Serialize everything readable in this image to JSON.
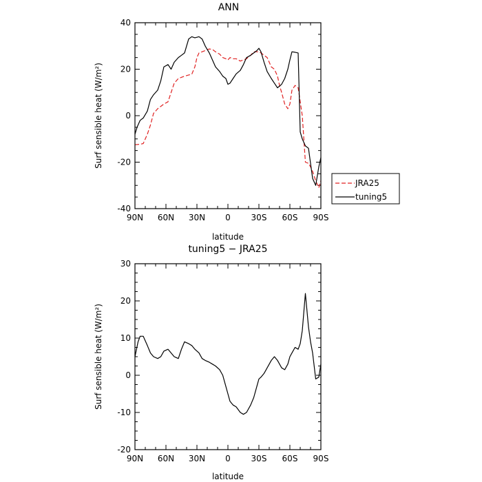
{
  "chart_data": [
    {
      "type": "line",
      "title": "ANN",
      "xlabel": "latitude",
      "ylabel": "Surf sensible heat (W/m²)",
      "ylim": [
        -40,
        40
      ],
      "yticks": [
        -40,
        -20,
        0,
        20,
        40
      ],
      "xticks": [
        {
          "lat": 90,
          "label": "90N"
        },
        {
          "lat": 60,
          "label": "60N"
        },
        {
          "lat": 30,
          "label": "30N"
        },
        {
          "lat": 0,
          "label": "0"
        },
        {
          "lat": -30,
          "label": "30S"
        },
        {
          "lat": -60,
          "label": "60S"
        },
        {
          "lat": -90,
          "label": "90S"
        }
      ],
      "legend": {
        "placement": "right"
      },
      "series": [
        {
          "name": "JRA25",
          "color": "#e02020",
          "dash": "dashed",
          "x": [
            90,
            85,
            82,
            78,
            75,
            72,
            68,
            65,
            62,
            58,
            55,
            52,
            48,
            45,
            42,
            38,
            35,
            32,
            30,
            28,
            25,
            22,
            18,
            15,
            12,
            8,
            5,
            2,
            0,
            -2,
            -5,
            -8,
            -12,
            -15,
            -18,
            -22,
            -25,
            -28,
            -30,
            -32,
            -35,
            -38,
            -42,
            -45,
            -48,
            -50,
            -52,
            -55,
            -58,
            -60,
            -62,
            -65,
            -68,
            -72,
            -75,
            -78,
            -80,
            -82,
            -85,
            -88,
            -90
          ],
          "y": [
            -12.5,
            -12.3,
            -12,
            -8,
            -4,
            1,
            3,
            4,
            5,
            6,
            10,
            14,
            16,
            16.5,
            17,
            17.5,
            17.8,
            21,
            25,
            27,
            27.5,
            28,
            28.7,
            28.5,
            27.5,
            26.5,
            25,
            24.5,
            24,
            25,
            24.5,
            24.5,
            23.5,
            24,
            24.5,
            26,
            27.5,
            27.5,
            27.5,
            27,
            26,
            25,
            21,
            20,
            17,
            13,
            10,
            5,
            3,
            5,
            11,
            13,
            12,
            0,
            -20,
            -20.5,
            -22,
            -24,
            -28,
            -31,
            -28
          ]
        },
        {
          "name": "tuning5",
          "color": "#000000",
          "dash": "solid",
          "x": [
            90,
            88,
            85,
            82,
            78,
            75,
            72,
            68,
            65,
            62,
            58,
            55,
            52,
            48,
            45,
            42,
            38,
            35,
            32,
            28,
            25,
            22,
            18,
            15,
            12,
            8,
            5,
            2,
            0,
            -2,
            -5,
            -8,
            -12,
            -15,
            -18,
            -22,
            -25,
            -28,
            -30,
            -32,
            -35,
            -38,
            -42,
            -45,
            -48,
            -52,
            -55,
            -58,
            -60,
            -62,
            -65,
            -68,
            -70,
            -72,
            -75,
            -78,
            -82,
            -85,
            -88,
            -90
          ],
          "y": [
            -8,
            -5,
            -2,
            -1,
            2,
            7,
            9,
            11,
            15,
            21,
            22,
            20,
            23,
            25,
            26,
            27,
            33,
            34,
            33.5,
            34,
            33,
            30,
            27,
            24,
            21,
            19,
            17,
            16,
            13.5,
            14,
            16,
            18,
            19.5,
            22,
            25,
            26,
            27,
            28,
            29,
            27.5,
            23,
            19,
            16,
            14,
            12,
            13.5,
            16,
            20,
            24,
            27.5,
            27.3,
            27,
            -7,
            -10,
            -13,
            -14,
            -27,
            -30,
            -22,
            -18
          ]
        }
      ]
    },
    {
      "type": "line",
      "title": "tuning5 − JRA25",
      "xlabel": "latitude",
      "ylabel": "Surf sensible heat (W/m²)",
      "ylim": [
        -20,
        30
      ],
      "yticks": [
        -20,
        -10,
        0,
        10,
        20,
        30
      ],
      "xticks": [
        {
          "lat": 90,
          "label": "90N"
        },
        {
          "lat": 60,
          "label": "60N"
        },
        {
          "lat": 30,
          "label": "30N"
        },
        {
          "lat": 0,
          "label": "0"
        },
        {
          "lat": -30,
          "label": "30S"
        },
        {
          "lat": -60,
          "label": "60S"
        },
        {
          "lat": -90,
          "label": "90S"
        }
      ],
      "series": [
        {
          "color": "#000000",
          "dash": "solid",
          "x": [
            90,
            87,
            85,
            82,
            78,
            75,
            72,
            68,
            65,
            62,
            58,
            55,
            52,
            48,
            45,
            42,
            38,
            35,
            32,
            28,
            25,
            22,
            18,
            15,
            12,
            8,
            5,
            2,
            0,
            -2,
            -5,
            -8,
            -12,
            -15,
            -18,
            -22,
            -25,
            -28,
            -30,
            -32,
            -35,
            -38,
            -42,
            -45,
            -48,
            -52,
            -55,
            -58,
            -60,
            -62,
            -65,
            -68,
            -70,
            -72,
            -75,
            -78,
            -80,
            -82,
            -85,
            -88,
            -90
          ],
          "y": [
            5,
            9,
            10.5,
            10.5,
            8,
            6,
            5,
            4.5,
            5,
            6.5,
            7,
            6,
            5,
            4.5,
            7,
            9,
            8.5,
            8,
            7,
            6,
            4.5,
            4,
            3.5,
            3,
            2.5,
            1.5,
            0,
            -3,
            -5,
            -7,
            -8,
            -8.5,
            -10,
            -10.5,
            -10,
            -8,
            -6,
            -3,
            -1,
            -0.5,
            0.5,
            2,
            4,
            5,
            4,
            2,
            1.5,
            3,
            5,
            6,
            7.5,
            7,
            8.5,
            12,
            22,
            13,
            9,
            6,
            -1,
            -0.5,
            3
          ]
        }
      ]
    }
  ]
}
